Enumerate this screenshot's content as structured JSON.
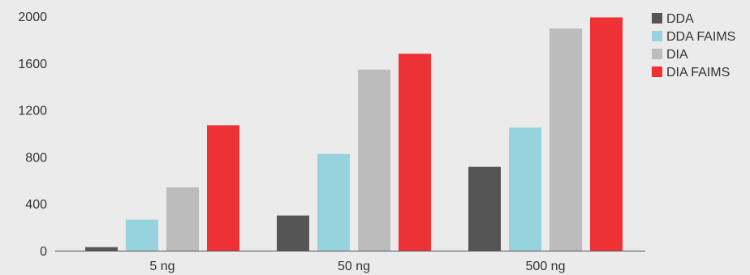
{
  "chart_data": {
    "type": "bar",
    "title": "",
    "xlabel": "",
    "ylabel": "",
    "categories": [
      "5 ng",
      "50 ng",
      "500 ng"
    ],
    "series": [
      {
        "name": "DDA",
        "color": "#555555",
        "values": [
          30,
          300,
          715
        ]
      },
      {
        "name": "DDA FAIMS",
        "color": "#97d3df",
        "values": [
          265,
          825,
          1050
        ]
      },
      {
        "name": "DIA",
        "color": "#bcbcbd",
        "values": [
          540,
          1545,
          1895
        ]
      },
      {
        "name": "DIA FAIMS",
        "color": "#ee3135",
        "values": [
          1070,
          1680,
          1990
        ]
      }
    ],
    "ylim": [
      0,
      2000
    ],
    "yticks": [
      0,
      400,
      800,
      1200,
      1600,
      2000
    ],
    "grid": false,
    "legend": "top-right"
  }
}
